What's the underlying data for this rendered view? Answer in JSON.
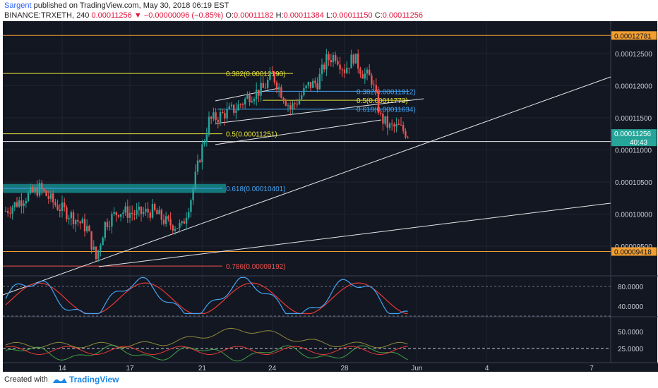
{
  "header": {
    "author": "Sargent",
    "published": "published on TradingView.com, May 30, 2018 06:19 EST",
    "symbol": "BINANCE:TRXETH, 240",
    "last": "0.00011256",
    "change": "−0.00000096 (−0.85%)",
    "o_label": "O:",
    "o_value": "0.00011182",
    "h_label": "H:",
    "h_value": "0.00011384",
    "l_label": "L:",
    "l_value": "0.00011150",
    "c_label": "C:",
    "c_value": "0.00011256"
  },
  "footer": {
    "created": "Created with",
    "brand": "TradingView"
  },
  "colors": {
    "background": "#131722",
    "up": "#26a69a",
    "down": "#ef5350",
    "fib_yellow": "#e9e43b",
    "fib_blue": "#42a5f5",
    "fib_red": "#ef5350",
    "orange": "#f29f30",
    "zone": "#168a8a"
  },
  "chart_data": [
    {
      "type": "candlestick",
      "x_ticks": [
        "14",
        "17",
        "21",
        "24",
        "28",
        "Jun",
        "4",
        "7"
      ],
      "y_ticks": [
        "0.00012500",
        "0.00012000",
        "0.00011500",
        "0.00011000",
        "0.00010500",
        "0.00010000",
        "0.00009500"
      ],
      "ylim": [
        9.05e-05,
        0.0001296
      ],
      "price_labels": {
        "upper": "0.00012781",
        "current": "0.00011256",
        "countdown": "40:43",
        "lower": "0.00009418"
      },
      "horizontal_lines": {
        "upper_orange": 0.00012781,
        "lower_orange": 9.418e-05,
        "white_support": 0.0001113
      },
      "fib_levels": [
        {
          "label": "0.382(0.00012190)",
          "value": 0.0001219,
          "color": "#e9e43b"
        },
        {
          "label": "0.5(0.00011251)",
          "value": 0.00011251,
          "color": "#e9e43b"
        },
        {
          "label": "0.618(0.00010401)",
          "value": 0.00010401,
          "color": "#42a5f5"
        },
        {
          "label": "0.786(0.00009192)",
          "value": 9.192e-05,
          "color": "#ef5350"
        },
        {
          "label": "0.382(0.00011912)",
          "value": 0.00011912,
          "color": "#42a5f5"
        },
        {
          "label": "0.5(0.00011773)",
          "value": 0.00011773,
          "color": "#e9e43b"
        },
        {
          "label": "0.618(0.00011634)",
          "value": 0.00011634,
          "color": "#42a5f5"
        }
      ],
      "price_anchors": [
        [
          0,
          0.0001005
        ],
        [
          8,
          0.0001025
        ],
        [
          15,
          0.000104
        ],
        [
          22,
          0.0001015
        ],
        [
          30,
          9.95e-05
        ],
        [
          36,
          9.78e-05
        ],
        [
          40,
          9.3e-05
        ],
        [
          44,
          9.85e-05
        ],
        [
          50,
          0.0001005
        ],
        [
          58,
          0.0001
        ],
        [
          65,
          0.0001005
        ],
        [
          72,
          9.85e-05
        ],
        [
          78,
          9.8e-05
        ],
        [
          82,
          0.0001025
        ],
        [
          86,
          0.000109
        ],
        [
          90,
          0.0001145
        ],
        [
          96,
          0.0001155
        ],
        [
          102,
          0.0001165
        ],
        [
          108,
          0.0001185
        ],
        [
          114,
          0.0001195
        ],
        [
          118,
          0.00012175
        ],
        [
          122,
          0.000119
        ],
        [
          126,
          0.0001165
        ],
        [
          130,
          0.000118
        ],
        [
          134,
          0.00012
        ],
        [
          138,
          0.0001205
        ],
        [
          142,
          0.000124
        ],
        [
          146,
          0.00012475
        ],
        [
          150,
          0.0001225
        ],
        [
          154,
          0.0001245
        ],
        [
          158,
          0.000122
        ],
        [
          162,
          0.000121
        ],
        [
          166,
          0.000115
        ],
        [
          170,
          0.0001135
        ],
        [
          174,
          0.0001135
        ],
        [
          178,
          0.0001125
        ]
      ]
    },
    {
      "type": "line",
      "name": "stochastic",
      "y_ticks": [
        "80.0000",
        "40.0000"
      ],
      "ylim": [
        20,
        100
      ]
    },
    {
      "type": "line",
      "name": "oscillator",
      "y_ticks": [
        "50.0000",
        "25.0000"
      ],
      "ylim": [
        5,
        70
      ]
    }
  ]
}
